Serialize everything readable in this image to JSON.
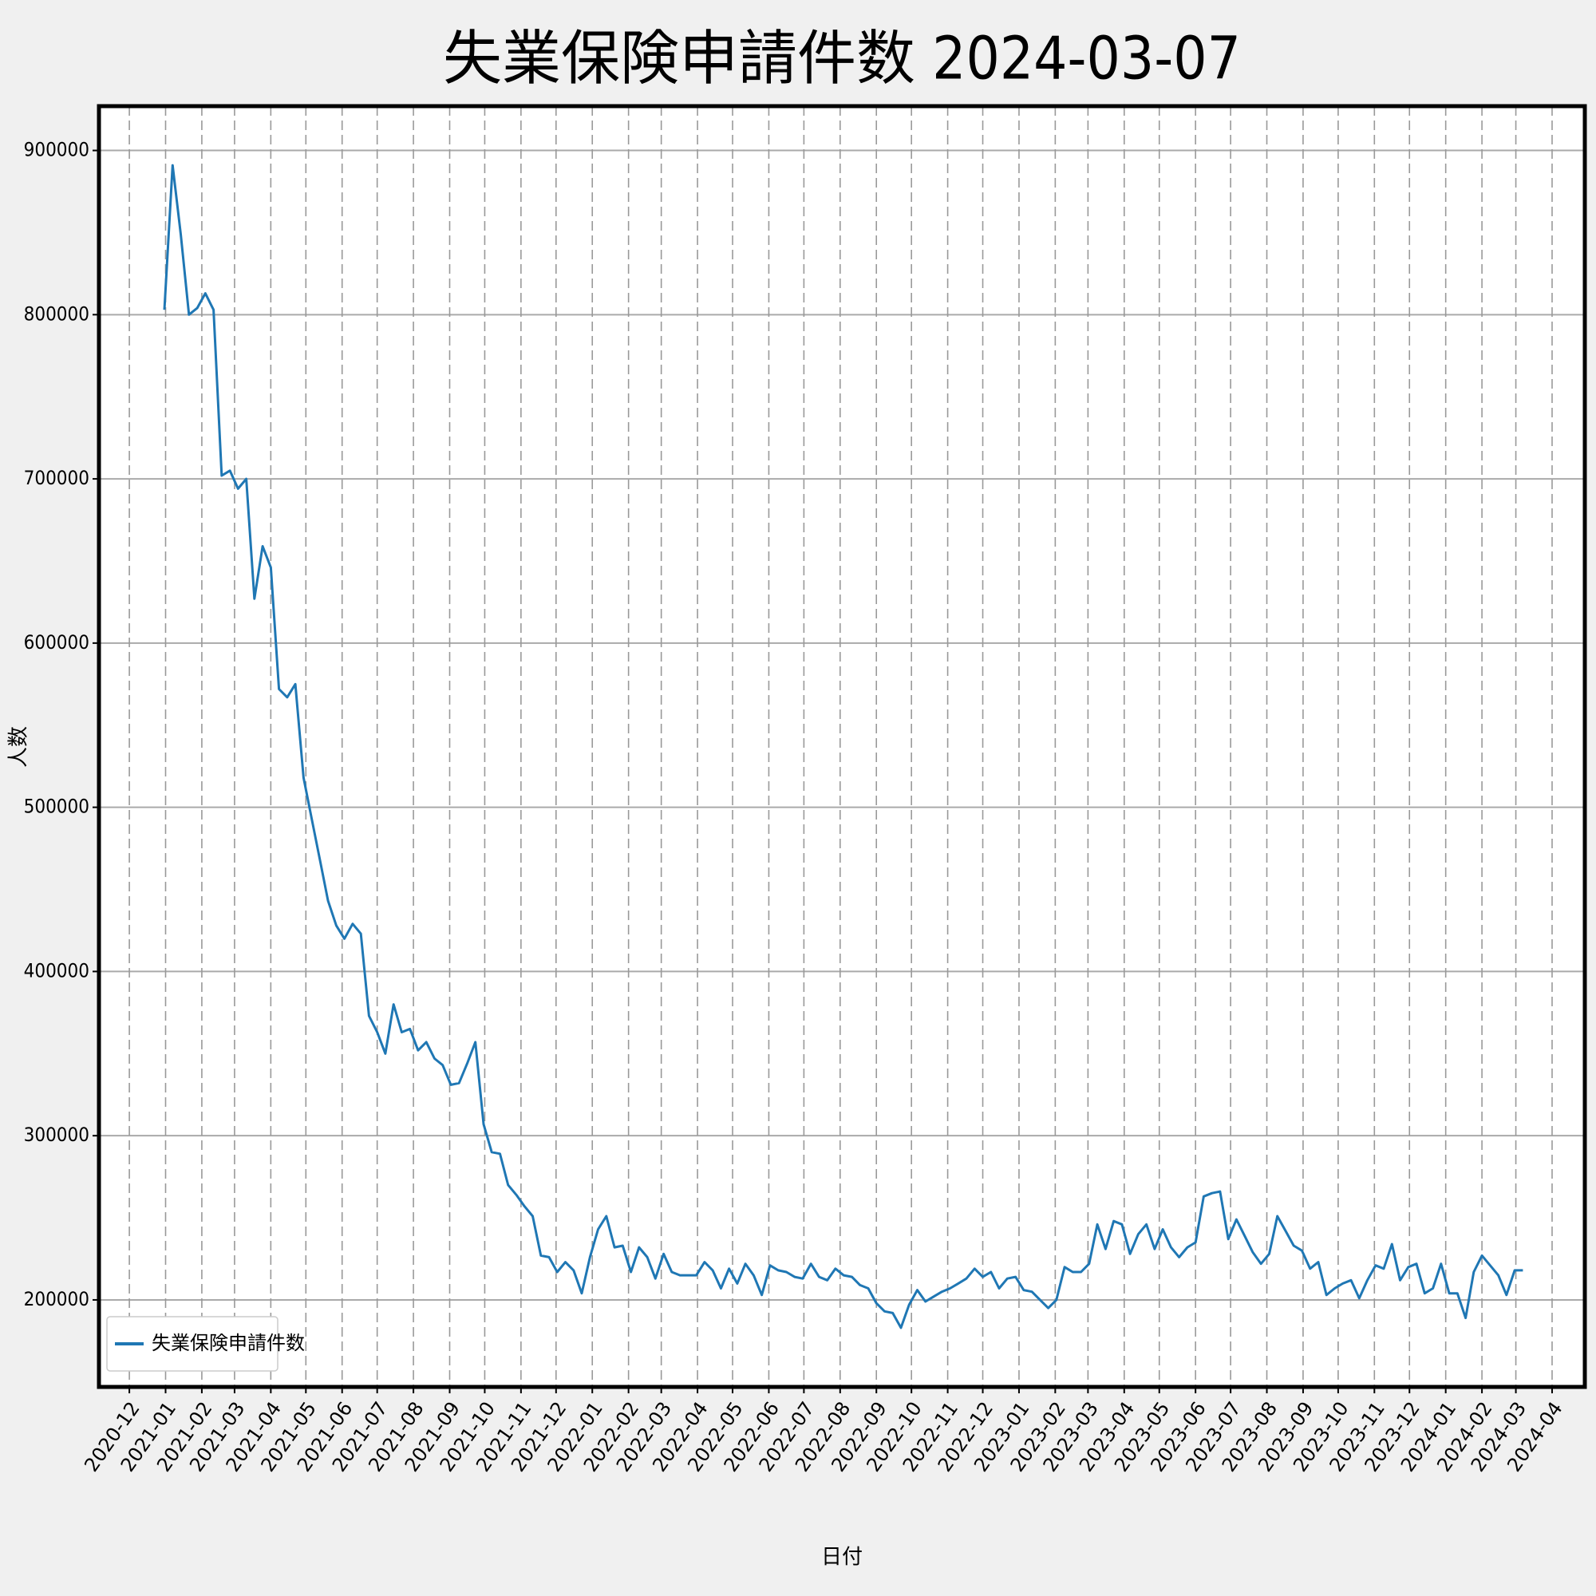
{
  "chart_data": {
    "type": "line",
    "title": "失業保険申請件数 2024-03-07",
    "x_label": "日付",
    "y_label": "人数",
    "x": [
      "2020-12-31",
      "2021-01-07",
      "2021-01-14",
      "2021-01-21",
      "2021-01-28",
      "2021-02-04",
      "2021-02-11",
      "2021-02-18",
      "2021-02-25",
      "2021-03-04",
      "2021-03-11",
      "2021-03-18",
      "2021-03-25",
      "2021-04-01",
      "2021-04-08",
      "2021-04-15",
      "2021-04-22",
      "2021-04-29",
      "2021-05-06",
      "2021-05-13",
      "2021-05-20",
      "2021-05-27",
      "2021-06-03",
      "2021-06-10",
      "2021-06-17",
      "2021-06-24",
      "2021-07-01",
      "2021-07-08",
      "2021-07-15",
      "2021-07-22",
      "2021-07-29",
      "2021-08-05",
      "2021-08-12",
      "2021-08-19",
      "2021-08-26",
      "2021-09-02",
      "2021-09-09",
      "2021-09-16",
      "2021-09-23",
      "2021-09-30",
      "2021-10-07",
      "2021-10-14",
      "2021-10-21",
      "2021-10-28",
      "2021-11-04",
      "2021-11-11",
      "2021-11-18",
      "2021-11-25",
      "2021-12-02",
      "2021-12-09",
      "2021-12-16",
      "2021-12-23",
      "2021-12-30",
      "2022-01-06",
      "2022-01-13",
      "2022-01-20",
      "2022-01-27",
      "2022-02-03",
      "2022-02-10",
      "2022-02-17",
      "2022-02-24",
      "2022-03-03",
      "2022-03-10",
      "2022-03-17",
      "2022-03-24",
      "2022-03-31",
      "2022-04-07",
      "2022-04-14",
      "2022-04-21",
      "2022-04-28",
      "2022-05-05",
      "2022-05-12",
      "2022-05-19",
      "2022-05-26",
      "2022-06-02",
      "2022-06-09",
      "2022-06-16",
      "2022-06-23",
      "2022-06-30",
      "2022-07-07",
      "2022-07-14",
      "2022-07-21",
      "2022-07-28",
      "2022-08-04",
      "2022-08-11",
      "2022-08-18",
      "2022-08-25",
      "2022-09-01",
      "2022-09-08",
      "2022-09-15",
      "2022-09-22",
      "2022-09-29",
      "2022-10-06",
      "2022-10-13",
      "2022-10-20",
      "2022-10-27",
      "2022-11-03",
      "2022-11-10",
      "2022-11-17",
      "2022-11-24",
      "2022-12-01",
      "2022-12-08",
      "2022-12-15",
      "2022-12-22",
      "2022-12-29",
      "2023-01-05",
      "2023-01-12",
      "2023-01-19",
      "2023-01-26",
      "2023-02-02",
      "2023-02-09",
      "2023-02-16",
      "2023-02-23",
      "2023-03-02",
      "2023-03-09",
      "2023-03-16",
      "2023-03-23",
      "2023-03-30",
      "2023-04-06",
      "2023-04-13",
      "2023-04-20",
      "2023-04-27",
      "2023-05-04",
      "2023-05-11",
      "2023-05-18",
      "2023-05-25",
      "2023-06-01",
      "2023-06-08",
      "2023-06-15",
      "2023-06-22",
      "2023-06-29",
      "2023-07-06",
      "2023-07-13",
      "2023-07-20",
      "2023-07-27",
      "2023-08-03",
      "2023-08-10",
      "2023-08-17",
      "2023-08-24",
      "2023-08-31",
      "2023-09-07",
      "2023-09-14",
      "2023-09-21",
      "2023-09-28",
      "2023-10-05",
      "2023-10-12",
      "2023-10-19",
      "2023-10-26",
      "2023-11-02",
      "2023-11-09",
      "2023-11-16",
      "2023-11-23",
      "2023-11-30",
      "2023-12-07",
      "2023-12-14",
      "2023-12-21",
      "2023-12-28",
      "2024-01-04",
      "2024-01-11",
      "2024-01-18",
      "2024-01-25",
      "2024-02-01",
      "2024-02-08",
      "2024-02-15",
      "2024-02-22",
      "2024-02-29",
      "2024-03-07"
    ],
    "series": [
      {
        "name": "失業保険申請件数",
        "color": "#1f77b4",
        "values": [
          803000,
          891000,
          849000,
          800000,
          804000,
          813000,
          803000,
          702000,
          705000,
          694000,
          700000,
          627000,
          659000,
          646000,
          572000,
          567000,
          575000,
          518000,
          493000,
          468000,
          443000,
          428000,
          420000,
          429000,
          423000,
          373000,
          363000,
          350000,
          380000,
          363000,
          365000,
          352000,
          357000,
          347000,
          343000,
          331000,
          332000,
          344000,
          357000,
          307000,
          290000,
          289000,
          270000,
          264000,
          257000,
          251000,
          227000,
          226000,
          217000,
          223000,
          218000,
          204000,
          226000,
          243000,
          251000,
          232000,
          233000,
          217000,
          232000,
          226000,
          213000,
          228000,
          217000,
          215000,
          215000,
          215000,
          223000,
          218000,
          207000,
          219000,
          210000,
          222000,
          215000,
          203000,
          221000,
          218000,
          217000,
          214000,
          213000,
          222000,
          214000,
          212000,
          219000,
          215000,
          214000,
          209000,
          207000,
          198000,
          193000,
          192000,
          183000,
          197000,
          206000,
          199000,
          202000,
          205000,
          207000,
          210000,
          213000,
          219000,
          214000,
          217000,
          207000,
          213000,
          214000,
          206000,
          205000,
          200000,
          195000,
          200000,
          220000,
          217000,
          217000,
          222000,
          246000,
          231000,
          248000,
          246000,
          228000,
          240000,
          246000,
          231000,
          243000,
          232000,
          226000,
          232000,
          235000,
          263000,
          265000,
          266000,
          237000,
          249000,
          239000,
          229000,
          222000,
          228000,
          251000,
          242000,
          233000,
          230000,
          219000,
          223000,
          203000,
          207000,
          210000,
          212000,
          201000,
          212000,
          221000,
          219000,
          234000,
          212000,
          220000,
          222000,
          204000,
          207000,
          222000,
          204000,
          204000,
          189000,
          217000,
          227000,
          221000,
          215000,
          203000,
          218000,
          218000
        ]
      }
    ],
    "xlim": [
      "2020-11-05",
      "2024-04-29"
    ],
    "xticks": [
      "2020-12",
      "2021-01",
      "2021-02",
      "2021-03",
      "2021-04",
      "2021-05",
      "2021-06",
      "2021-07",
      "2021-08",
      "2021-09",
      "2021-10",
      "2021-11",
      "2021-12",
      "2022-01",
      "2022-02",
      "2022-03",
      "2022-04",
      "2022-05",
      "2022-06",
      "2022-07",
      "2022-08",
      "2022-09",
      "2022-10",
      "2022-11",
      "2022-12",
      "2023-01",
      "2023-02",
      "2023-03",
      "2023-04",
      "2023-05",
      "2023-06",
      "2023-07",
      "2023-08",
      "2023-09",
      "2023-10",
      "2023-11",
      "2023-12",
      "2024-01",
      "2024-02",
      "2024-03",
      "2024-04"
    ],
    "ylim": [
      147000,
      927000
    ],
    "yticks": [
      200000,
      300000,
      400000,
      500000,
      600000,
      700000,
      800000,
      900000
    ],
    "grid": true,
    "legend": "lower left"
  }
}
